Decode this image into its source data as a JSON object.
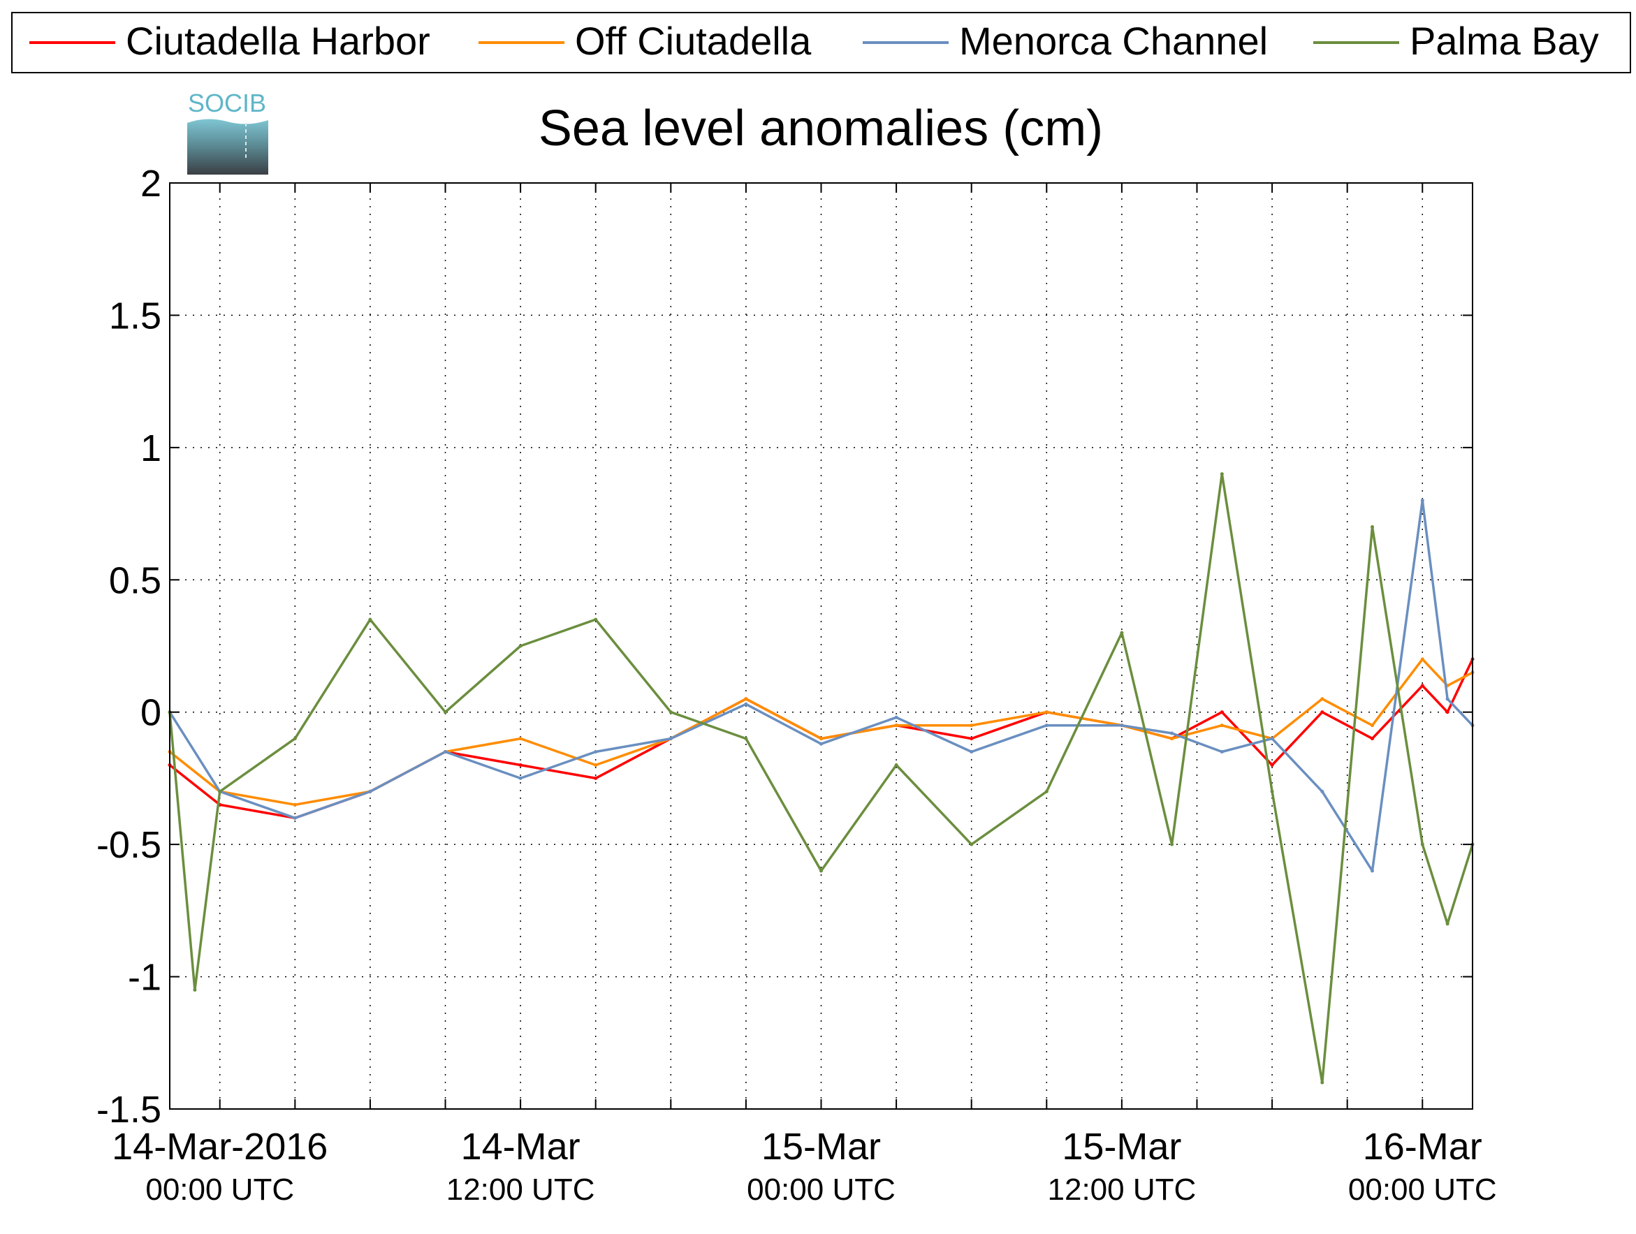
{
  "logo": {
    "text": "SOCIB"
  },
  "colors": {
    "ciutadella_harbor": "#ff0000",
    "off_ciutadella": "#ff8c00",
    "menorca_channel": "#6a8fc0",
    "palma_bay": "#6b8e3e"
  },
  "chart_data": {
    "type": "line",
    "title": "Sea level anomalies (cm)",
    "xlabel": "",
    "ylabel": "",
    "ylim": [
      -1.5,
      2
    ],
    "xlim": [
      "2016-03-14T00:00",
      "2016-03-16T00:00"
    ],
    "yticks": [
      "2",
      "1.5",
      "1",
      "0.5",
      "0",
      "-0.5",
      "-1",
      "-1.5"
    ],
    "xtick_labels": [
      {
        "date": "14-Mar-2016",
        "time": "00:00 UTC"
      },
      {
        "date": "14-Mar",
        "time": "12:00 UTC"
      },
      {
        "date": "15-Mar",
        "time": "00:00 UTC"
      },
      {
        "date": "15-Mar",
        "time": "12:00 UTC"
      },
      {
        "date": "16-Mar",
        "time": "00:00 UTC"
      }
    ],
    "grid": true,
    "legend_position": "top",
    "series": [
      {
        "name": "Ciutadella Harbor",
        "x": [
          "2016-03-13T22:00",
          "2016-03-14T00:00",
          "2016-03-14T03:00",
          "2016-03-14T06:00",
          "2016-03-14T09:00",
          "2016-03-14T12:00",
          "2016-03-14T15:00",
          "2016-03-14T18:00",
          "2016-03-14T21:00",
          "2016-03-15T00:00",
          "2016-03-15T03:00",
          "2016-03-15T06:00",
          "2016-03-15T09:00",
          "2016-03-15T12:00",
          "2016-03-15T14:00",
          "2016-03-15T16:00",
          "2016-03-15T18:00",
          "2016-03-15T20:00",
          "2016-03-15T22:00",
          "2016-03-16T00:00",
          "2016-03-16T01:00",
          "2016-03-16T02:00"
        ],
        "values": [
          -0.2,
          -0.35,
          -0.4,
          -0.3,
          -0.15,
          -0.2,
          -0.25,
          -0.1,
          0.05,
          -0.1,
          -0.05,
          -0.1,
          0.0,
          -0.05,
          -0.1,
          0.0,
          -0.2,
          0.0,
          -0.1,
          0.1,
          0.0,
          0.2
        ]
      },
      {
        "name": "Off Ciutadella",
        "x": [
          "2016-03-13T22:00",
          "2016-03-14T00:00",
          "2016-03-14T03:00",
          "2016-03-14T06:00",
          "2016-03-14T09:00",
          "2016-03-14T12:00",
          "2016-03-14T15:00",
          "2016-03-14T18:00",
          "2016-03-14T21:00",
          "2016-03-15T00:00",
          "2016-03-15T03:00",
          "2016-03-15T06:00",
          "2016-03-15T09:00",
          "2016-03-15T12:00",
          "2016-03-15T14:00",
          "2016-03-15T16:00",
          "2016-03-15T18:00",
          "2016-03-15T20:00",
          "2016-03-15T22:00",
          "2016-03-16T00:00",
          "2016-03-16T01:00",
          "2016-03-16T02:00"
        ],
        "values": [
          -0.15,
          -0.3,
          -0.35,
          -0.3,
          -0.15,
          -0.1,
          -0.2,
          -0.1,
          0.05,
          -0.1,
          -0.05,
          -0.05,
          0.0,
          -0.05,
          -0.1,
          -0.05,
          -0.1,
          0.05,
          -0.05,
          0.2,
          0.1,
          0.15
        ]
      },
      {
        "name": "Menorca Channel",
        "x": [
          "2016-03-13T22:00",
          "2016-03-14T00:00",
          "2016-03-14T03:00",
          "2016-03-14T06:00",
          "2016-03-14T09:00",
          "2016-03-14T12:00",
          "2016-03-14T15:00",
          "2016-03-14T18:00",
          "2016-03-14T21:00",
          "2016-03-15T00:00",
          "2016-03-15T03:00",
          "2016-03-15T06:00",
          "2016-03-15T09:00",
          "2016-03-15T12:00",
          "2016-03-15T14:00",
          "2016-03-15T16:00",
          "2016-03-15T18:00",
          "2016-03-15T20:00",
          "2016-03-15T22:00",
          "2016-03-16T00:00",
          "2016-03-16T01:00",
          "2016-03-16T02:00"
        ],
        "values": [
          0.0,
          -0.3,
          -0.4,
          -0.3,
          -0.15,
          -0.25,
          -0.15,
          -0.1,
          0.03,
          -0.12,
          -0.02,
          -0.15,
          -0.05,
          -0.05,
          -0.08,
          -0.15,
          -0.1,
          -0.3,
          -0.6,
          0.8,
          0.05,
          -0.05
        ]
      },
      {
        "name": "Palma Bay",
        "x": [
          "2016-03-13T22:00",
          "2016-03-13T23:00",
          "2016-03-14T00:00",
          "2016-03-14T03:00",
          "2016-03-14T06:00",
          "2016-03-14T09:00",
          "2016-03-14T12:00",
          "2016-03-14T15:00",
          "2016-03-14T18:00",
          "2016-03-14T21:00",
          "2016-03-15T00:00",
          "2016-03-15T03:00",
          "2016-03-15T06:00",
          "2016-03-15T09:00",
          "2016-03-15T12:00",
          "2016-03-15T14:00",
          "2016-03-15T16:00",
          "2016-03-15T18:00",
          "2016-03-15T20:00",
          "2016-03-15T22:00",
          "2016-03-16T00:00",
          "2016-03-16T01:00",
          "2016-03-16T02:00"
        ],
        "values": [
          0.0,
          -1.05,
          -0.3,
          -0.1,
          0.35,
          0.0,
          0.25,
          0.35,
          0.0,
          -0.1,
          -0.6,
          -0.2,
          -0.5,
          -0.3,
          0.3,
          -0.5,
          0.9,
          -0.3,
          -1.4,
          0.7,
          -0.5,
          -0.8,
          -0.5
        ]
      }
    ]
  }
}
